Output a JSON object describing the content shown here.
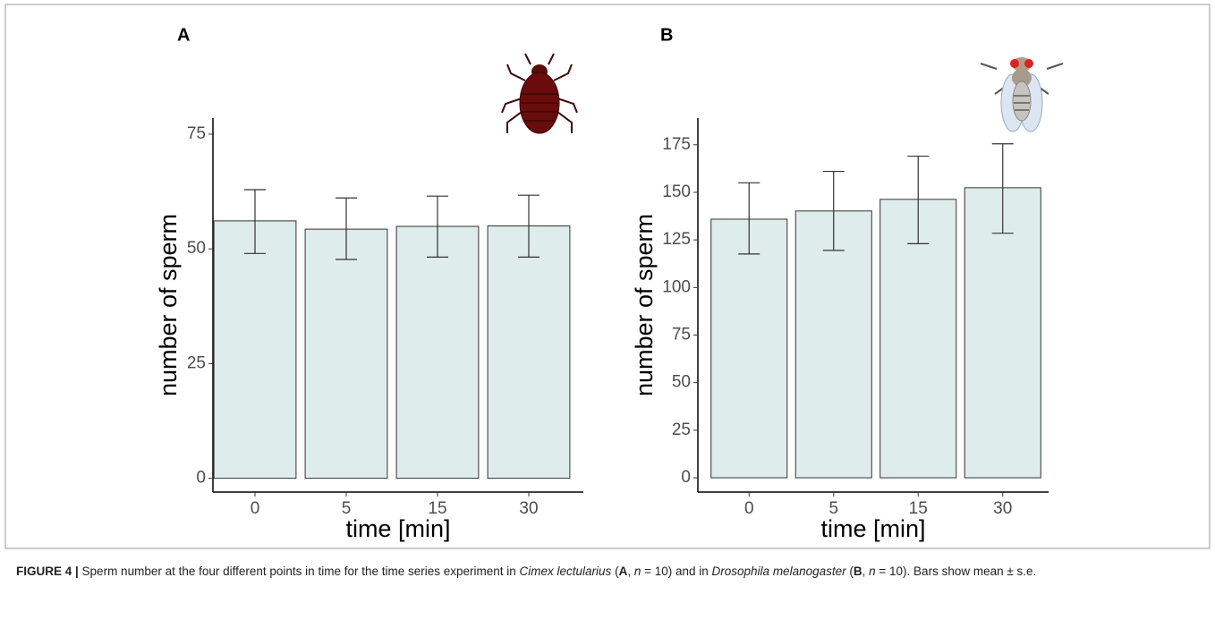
{
  "chart_data": [
    {
      "type": "bar",
      "title": "A",
      "xlabel": "time [min]",
      "ylabel": "number of sperm",
      "categories": [
        "0",
        "5",
        "15",
        "30"
      ],
      "values": [
        56.1,
        54.3,
        54.9,
        55.0
      ],
      "error_bars": [
        [
          49.0,
          62.9
        ],
        [
          47.7,
          61.1
        ],
        [
          48.2,
          61.5
        ],
        [
          48.2,
          61.7
        ]
      ],
      "color": "#deeceb",
      "ylim": [
        -3,
        78.5
      ],
      "yticks": [
        0,
        25,
        50,
        75
      ],
      "grid": false
    },
    {
      "type": "bar",
      "title": "B",
      "xlabel": "time [min]",
      "ylabel": "number of sperm",
      "categories": [
        "0",
        "5",
        "15",
        "30"
      ],
      "values": [
        135.9,
        140.2,
        146.3,
        152.4
      ],
      "error_bars": [
        [
          117.6,
          155.0
        ],
        [
          119.5,
          161.0
        ],
        [
          123.0,
          169.0
        ],
        [
          128.5,
          175.5
        ]
      ],
      "color": "#deeceb",
      "ylim": [
        -7.5,
        189
      ],
      "yticks": [
        0,
        25,
        50,
        75,
        100,
        125,
        150,
        175
      ],
      "grid": false
    }
  ],
  "caption": [
    {
      "text": "FIGURE 4 |",
      "style": "bold"
    },
    {
      "text": " Sperm number at the four different points in time for the time series experiment in ",
      "style": "normal"
    },
    {
      "text": "Cimex lectularius",
      "style": "italic"
    },
    {
      "text": " (",
      "style": "normal"
    },
    {
      "text": "A",
      "style": "bold"
    },
    {
      "text": ", ",
      "style": "normal"
    },
    {
      "text": "n",
      "style": "italic"
    },
    {
      "text": " = 10) and in ",
      "style": "normal"
    },
    {
      "text": "Drosophila melanogaster",
      "style": "italic"
    },
    {
      "text": " (",
      "style": "normal"
    },
    {
      "text": "B",
      "style": "bold"
    },
    {
      "text": ", ",
      "style": "normal"
    },
    {
      "text": "n",
      "style": "italic"
    },
    {
      "text": " = 10). Bars show mean ± s.e.",
      "style": "normal"
    }
  ]
}
